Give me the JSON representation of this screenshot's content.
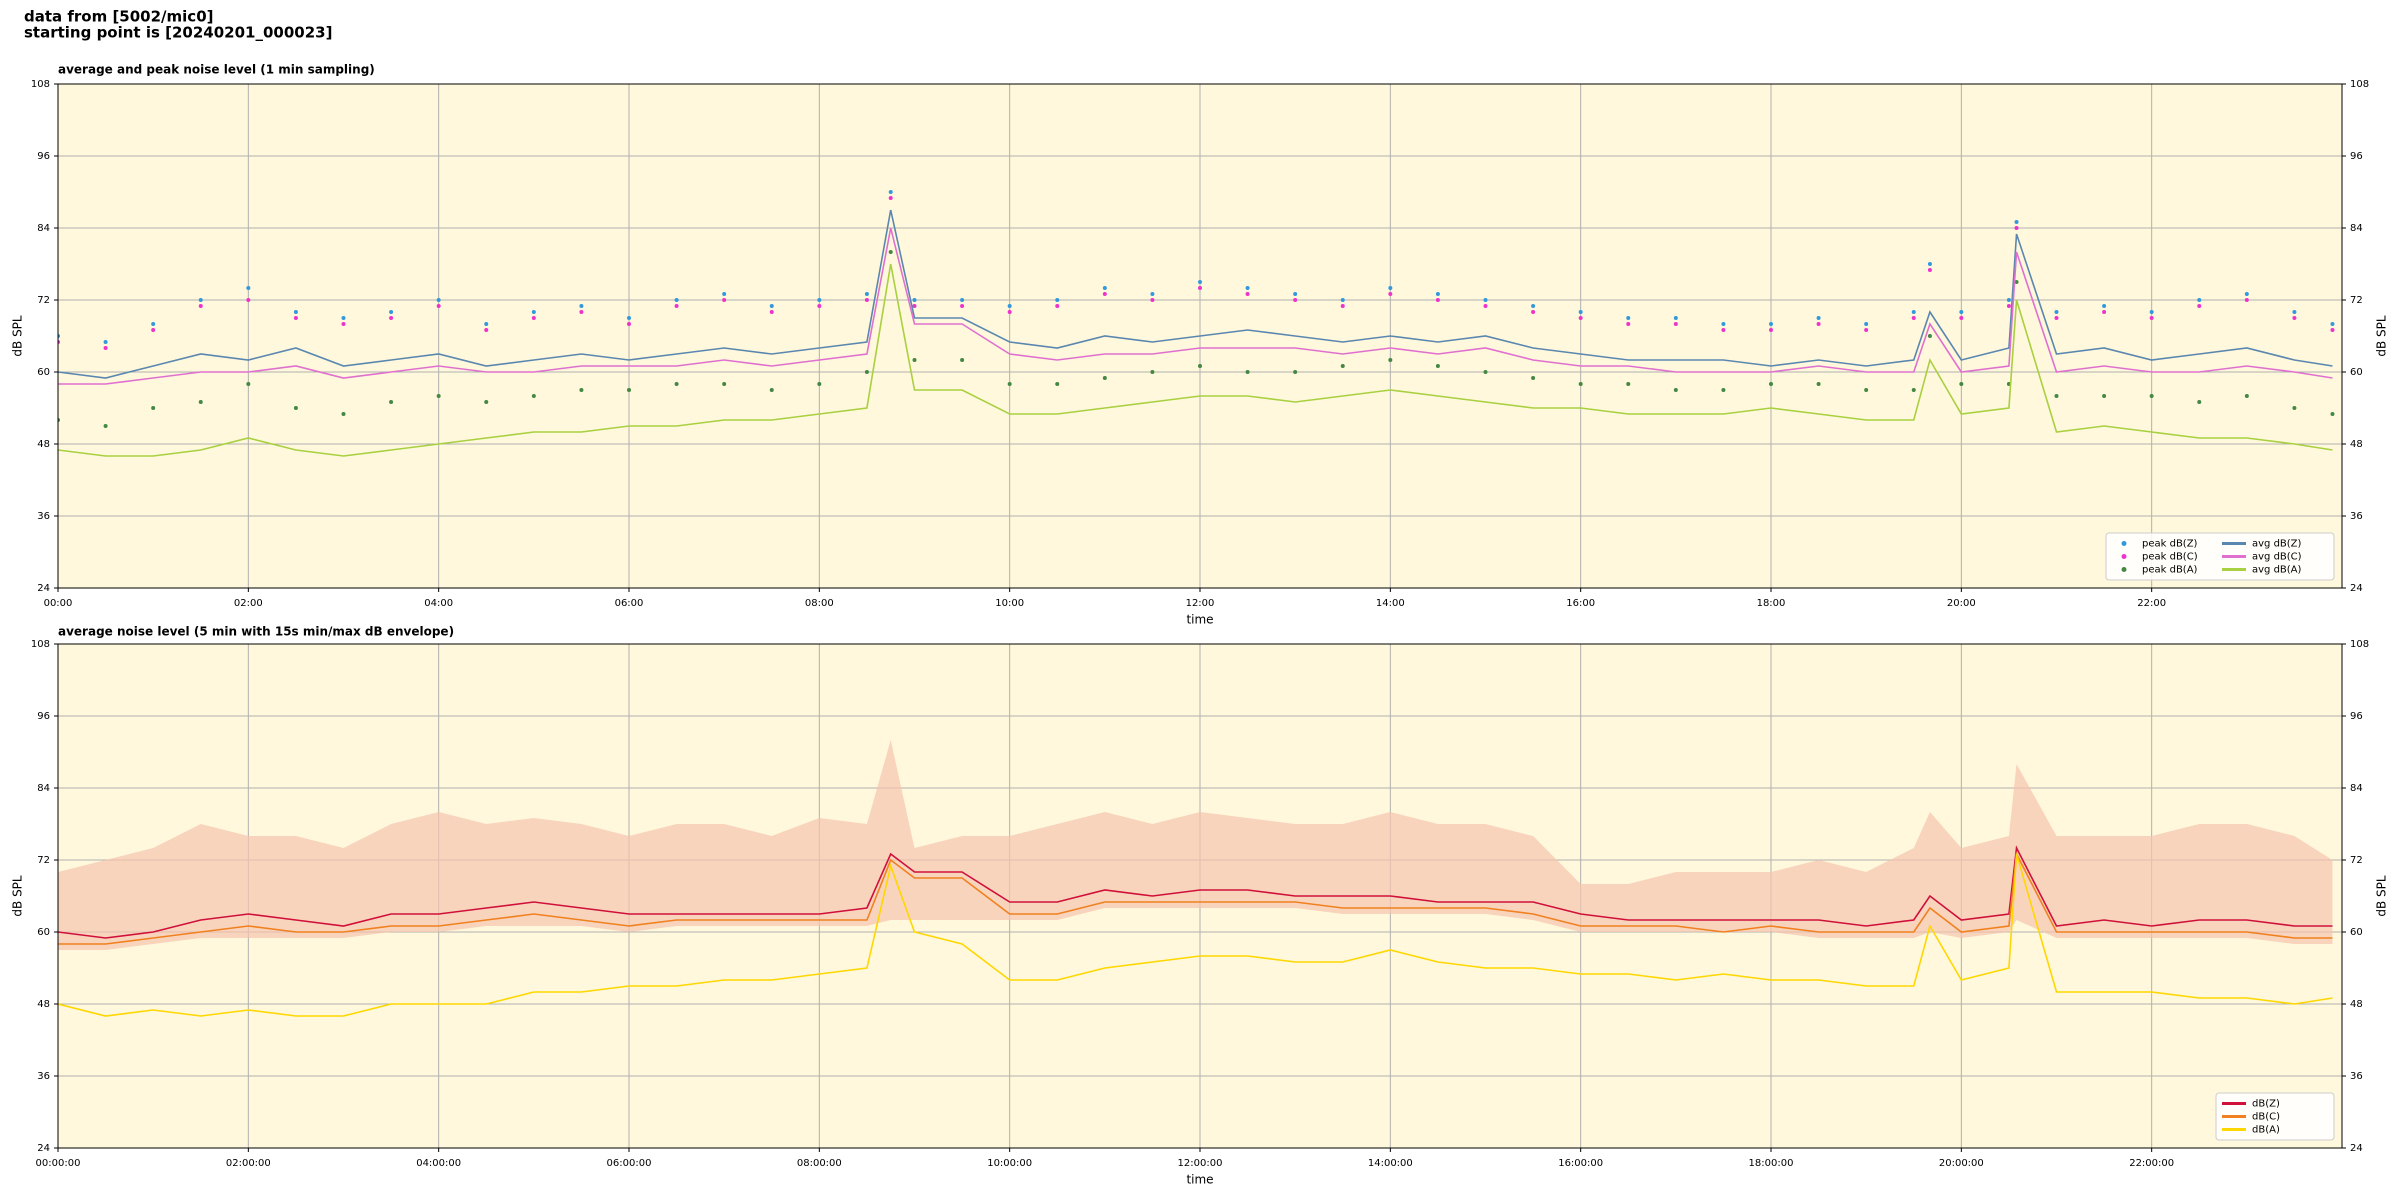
{
  "header": {
    "line1": "data from [5002/mic0]",
    "line2": "starting point is [20240201_000023]"
  },
  "chart_data": [
    {
      "type": "line",
      "title": "average and peak noise level (1 min sampling)",
      "xlabel": "time",
      "ylabel": "dB SPL",
      "background": "#fff8dc",
      "grid": true,
      "legend": "lower right",
      "legend_columns": 2,
      "xlim": [
        0,
        24
      ],
      "ylim": [
        24,
        108
      ],
      "yticks": [
        24,
        36,
        48,
        60,
        72,
        84,
        96,
        108
      ],
      "xticks": [
        {
          "value": 0,
          "label": "00:00"
        },
        {
          "value": 2,
          "label": "02:00"
        },
        {
          "value": 4,
          "label": "04:00"
        },
        {
          "value": 6,
          "label": "06:00"
        },
        {
          "value": 8,
          "label": "08:00"
        },
        {
          "value": 10,
          "label": "10:00"
        },
        {
          "value": 12,
          "label": "12:00"
        },
        {
          "value": 14,
          "label": "14:00"
        },
        {
          "value": 16,
          "label": "16:00"
        },
        {
          "value": 18,
          "label": "18:00"
        },
        {
          "value": 20,
          "label": "20:00"
        },
        {
          "value": 22,
          "label": "22:00"
        }
      ],
      "x": [
        0,
        0.5,
        1,
        1.5,
        2,
        2.5,
        3,
        3.5,
        4,
        4.5,
        5,
        5.5,
        6,
        6.5,
        7,
        7.5,
        8,
        8.5,
        8.75,
        9,
        9.5,
        10,
        10.5,
        11,
        11.5,
        12,
        12.5,
        13,
        13.5,
        14,
        14.5,
        15,
        15.5,
        16,
        16.5,
        17,
        17.5,
        18,
        18.5,
        19,
        19.5,
        19.67,
        20,
        20.5,
        20.58,
        21,
        21.5,
        22,
        22.5,
        23,
        23.5,
        23.9
      ],
      "series": [
        {
          "name": "peak dB(Z)",
          "type": "scatter",
          "color": "#3399dd",
          "values": [
            66,
            65,
            68,
            72,
            74,
            70,
            69,
            70,
            72,
            68,
            70,
            71,
            69,
            72,
            73,
            71,
            72,
            73,
            90,
            72,
            72,
            71,
            72,
            74,
            73,
            75,
            74,
            73,
            72,
            74,
            73,
            72,
            71,
            70,
            69,
            69,
            68,
            68,
            69,
            68,
            70,
            78,
            70,
            72,
            85,
            70,
            71,
            70,
            72,
            73,
            70,
            68
          ]
        },
        {
          "name": "peak dB(C)",
          "type": "scatter",
          "color": "#ee33cc",
          "values": [
            65,
            64,
            67,
            71,
            72,
            69,
            68,
            69,
            71,
            67,
            69,
            70,
            68,
            71,
            72,
            70,
            71,
            72,
            89,
            71,
            71,
            70,
            71,
            73,
            72,
            74,
            73,
            72,
            71,
            73,
            72,
            71,
            70,
            69,
            68,
            68,
            67,
            67,
            68,
            67,
            69,
            77,
            69,
            71,
            84,
            69,
            70,
            69,
            71,
            72,
            69,
            67
          ]
        },
        {
          "name": "peak dB(A)",
          "type": "scatter",
          "color": "#448844",
          "values": [
            52,
            51,
            54,
            55,
            58,
            54,
            53,
            55,
            56,
            55,
            56,
            57,
            57,
            58,
            58,
            57,
            58,
            60,
            80,
            62,
            62,
            58,
            58,
            59,
            60,
            61,
            60,
            60,
            61,
            62,
            61,
            60,
            59,
            58,
            58,
            57,
            57,
            58,
            58,
            57,
            57,
            66,
            58,
            58,
            75,
            56,
            56,
            56,
            55,
            56,
            54,
            53
          ]
        },
        {
          "name": "avg dB(Z)",
          "type": "line",
          "color": "#5a87b0",
          "values": [
            60,
            59,
            61,
            63,
            62,
            64,
            61,
            62,
            63,
            61,
            62,
            63,
            62,
            63,
            64,
            63,
            64,
            65,
            87,
            69,
            69,
            65,
            64,
            66,
            65,
            66,
            67,
            66,
            65,
            66,
            65,
            66,
            64,
            63,
            62,
            62,
            62,
            61,
            62,
            61,
            62,
            70,
            62,
            64,
            83,
            63,
            64,
            62,
            63,
            64,
            62,
            61
          ]
        },
        {
          "name": "avg dB(C)",
          "type": "line",
          "color": "#e070d0",
          "values": [
            58,
            58,
            59,
            60,
            60,
            61,
            59,
            60,
            61,
            60,
            60,
            61,
            61,
            61,
            62,
            61,
            62,
            63,
            84,
            68,
            68,
            63,
            62,
            63,
            63,
            64,
            64,
            64,
            63,
            64,
            63,
            64,
            62,
            61,
            61,
            60,
            60,
            60,
            61,
            60,
            60,
            68,
            60,
            61,
            80,
            60,
            61,
            60,
            60,
            61,
            60,
            59
          ]
        },
        {
          "name": "avg dB(A)",
          "type": "line",
          "color": "#a8d040",
          "values": [
            47,
            46,
            46,
            47,
            49,
            47,
            46,
            47,
            48,
            49,
            50,
            50,
            51,
            51,
            52,
            52,
            53,
            54,
            78,
            57,
            57,
            53,
            53,
            54,
            55,
            56,
            56,
            55,
            56,
            57,
            56,
            55,
            54,
            54,
            53,
            53,
            53,
            54,
            53,
            52,
            52,
            62,
            53,
            54,
            72,
            50,
            51,
            50,
            49,
            49,
            48,
            47
          ]
        }
      ]
    },
    {
      "type": "line",
      "title": "average noise level (5 min with 15s min/max dB envelope)",
      "xlabel": "time",
      "ylabel": "dB SPL",
      "background": "#fff8dc",
      "grid": true,
      "legend": "lower right",
      "legend_columns": 1,
      "xlim": [
        0,
        24
      ],
      "ylim": [
        24,
        108
      ],
      "yticks": [
        24,
        36,
        48,
        60,
        72,
        84,
        96,
        108
      ],
      "xticks": [
        {
          "value": 0,
          "label": "00:00:00"
        },
        {
          "value": 2,
          "label": "02:00:00"
        },
        {
          "value": 4,
          "label": "04:00:00"
        },
        {
          "value": 6,
          "label": "06:00:00"
        },
        {
          "value": 8,
          "label": "08:00:00"
        },
        {
          "value": 10,
          "label": "10:00:00"
        },
        {
          "value": 12,
          "label": "12:00:00"
        },
        {
          "value": 14,
          "label": "14:00:00"
        },
        {
          "value": 16,
          "label": "16:00:00"
        },
        {
          "value": 18,
          "label": "18:00:00"
        },
        {
          "value": 20,
          "label": "20:00:00"
        },
        {
          "value": 22,
          "label": "22:00:00"
        }
      ],
      "x": [
        0,
        0.5,
        1,
        1.5,
        2,
        2.5,
        3,
        3.5,
        4,
        4.5,
        5,
        5.5,
        6,
        6.5,
        7,
        7.5,
        8,
        8.5,
        8.75,
        9,
        9.5,
        10,
        10.5,
        11,
        11.5,
        12,
        12.5,
        13,
        13.5,
        14,
        14.5,
        15,
        15.5,
        16,
        16.5,
        17,
        17.5,
        18,
        18.5,
        19,
        19.5,
        19.67,
        20,
        20.5,
        20.58,
        21,
        21.5,
        22,
        22.5,
        23,
        23.5,
        23.9
      ],
      "envelope": {
        "color": "#f6c4ae",
        "upper": [
          70,
          72,
          74,
          78,
          76,
          76,
          74,
          78,
          80,
          78,
          79,
          78,
          76,
          78,
          78,
          76,
          79,
          78,
          92,
          74,
          76,
          76,
          78,
          80,
          78,
          80,
          79,
          78,
          78,
          80,
          78,
          78,
          76,
          68,
          68,
          70,
          70,
          70,
          72,
          70,
          74,
          80,
          74,
          76,
          88,
          76,
          76,
          76,
          78,
          78,
          76,
          72
        ],
        "lower": [
          57,
          57,
          58,
          59,
          59,
          59,
          59,
          60,
          60,
          61,
          61,
          61,
          60,
          61,
          61,
          61,
          61,
          61,
          62,
          62,
          62,
          62,
          62,
          64,
          64,
          64,
          64,
          64,
          63,
          63,
          63,
          63,
          62,
          60,
          60,
          60,
          60,
          60,
          59,
          59,
          59,
          60,
          59,
          60,
          62,
          59,
          59,
          59,
          59,
          59,
          58,
          58
        ]
      },
      "series": [
        {
          "name": "dB(Z)",
          "type": "line",
          "color": "#d0103a",
          "values": [
            60,
            59,
            60,
            62,
            63,
            62,
            61,
            63,
            63,
            64,
            65,
            64,
            63,
            63,
            63,
            63,
            63,
            64,
            73,
            70,
            70,
            65,
            65,
            67,
            66,
            67,
            67,
            66,
            66,
            66,
            65,
            65,
            65,
            63,
            62,
            62,
            62,
            62,
            62,
            61,
            62,
            66,
            62,
            63,
            74,
            61,
            62,
            61,
            62,
            62,
            61,
            61
          ]
        },
        {
          "name": "dB(C)",
          "type": "line",
          "color": "#f08020",
          "values": [
            58,
            58,
            59,
            60,
            61,
            60,
            60,
            61,
            61,
            62,
            63,
            62,
            61,
            62,
            62,
            62,
            62,
            62,
            72,
            69,
            69,
            63,
            63,
            65,
            65,
            65,
            65,
            65,
            64,
            64,
            64,
            64,
            63,
            61,
            61,
            61,
            60,
            61,
            60,
            60,
            60,
            64,
            60,
            61,
            73,
            60,
            60,
            60,
            60,
            60,
            59,
            59
          ]
        },
        {
          "name": "dB(A)",
          "type": "line",
          "color": "#ffd700",
          "values": [
            48,
            46,
            47,
            46,
            47,
            46,
            46,
            48,
            48,
            48,
            50,
            50,
            51,
            51,
            52,
            52,
            53,
            54,
            71,
            60,
            58,
            52,
            52,
            54,
            55,
            56,
            56,
            55,
            55,
            57,
            55,
            54,
            54,
            53,
            53,
            52,
            53,
            52,
            52,
            51,
            51,
            61,
            52,
            54,
            73,
            50,
            50,
            50,
            49,
            49,
            48,
            49
          ]
        }
      ]
    }
  ]
}
